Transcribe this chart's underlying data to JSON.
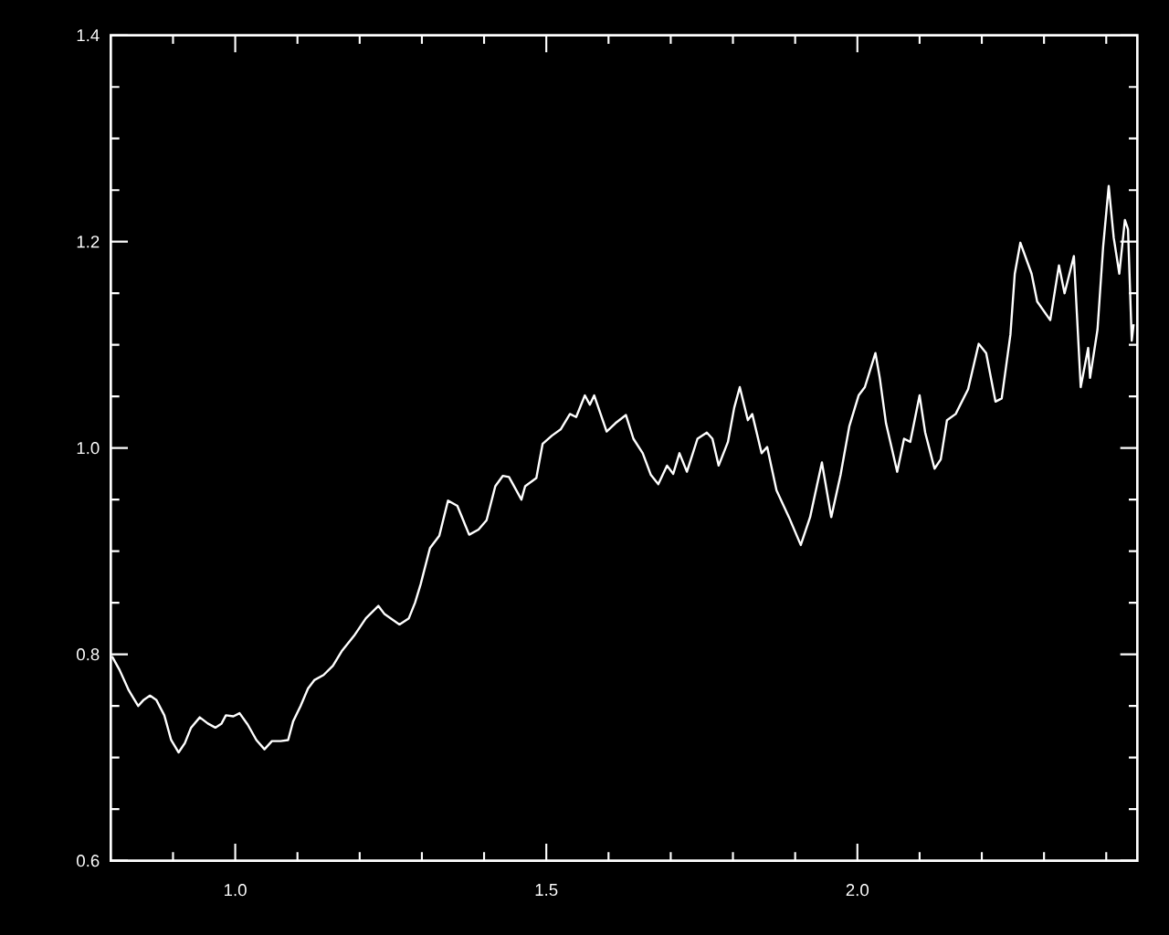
{
  "chart_data": {
    "type": "line",
    "x": [
      0.802,
      0.814,
      0.829,
      0.844,
      0.853,
      0.863,
      0.873,
      0.886,
      0.897,
      0.909,
      0.919,
      0.929,
      0.943,
      0.956,
      0.968,
      0.978,
      0.985,
      0.997,
      1.007,
      1.02,
      1.034,
      1.047,
      1.059,
      1.073,
      1.085,
      1.093,
      1.105,
      1.117,
      1.127,
      1.142,
      1.157,
      1.171,
      1.191,
      1.21,
      1.23,
      1.24,
      1.264,
      1.279,
      1.289,
      1.298,
      1.313,
      1.328,
      1.342,
      1.357,
      1.376,
      1.391,
      1.404,
      1.418,
      1.43,
      1.44,
      1.46,
      1.466,
      1.484,
      1.494,
      1.509,
      1.523,
      1.538,
      1.548,
      1.562,
      1.57,
      1.577,
      1.597,
      1.611,
      1.628,
      1.64,
      1.655,
      1.668,
      1.68,
      1.694,
      1.704,
      1.714,
      1.726,
      1.743,
      1.758,
      1.767,
      1.777,
      1.792,
      1.802,
      1.811,
      1.824,
      1.831,
      1.846,
      1.855,
      1.87,
      1.89,
      1.909,
      1.924,
      1.943,
      1.958,
      1.973,
      1.987,
      2.002,
      2.012,
      2.029,
      2.036,
      2.046,
      2.056,
      2.064,
      2.075,
      2.085,
      2.1,
      2.109,
      2.124,
      2.134,
      2.144,
      2.158,
      2.178,
      2.195,
      2.207,
      2.222,
      2.232,
      2.246,
      2.253,
      2.262,
      2.28,
      2.289,
      2.31,
      2.324,
      2.333,
      2.348,
      2.359,
      2.371,
      2.374,
      2.386,
      2.395,
      2.404,
      2.412,
      2.421,
      2.43,
      2.435,
      2.441,
      2.444
    ],
    "values": [
      0.798,
      0.785,
      0.765,
      0.75,
      0.756,
      0.76,
      0.756,
      0.741,
      0.717,
      0.705,
      0.714,
      0.729,
      0.739,
      0.733,
      0.729,
      0.733,
      0.741,
      0.74,
      0.743,
      0.732,
      0.717,
      0.708,
      0.716,
      0.716,
      0.717,
      0.735,
      0.75,
      0.767,
      0.775,
      0.78,
      0.789,
      0.803,
      0.818,
      0.835,
      0.847,
      0.839,
      0.829,
      0.835,
      0.85,
      0.868,
      0.903,
      0.915,
      0.949,
      0.944,
      0.916,
      0.921,
      0.93,
      0.963,
      0.973,
      0.972,
      0.95,
      0.963,
      0.971,
      1.004,
      1.012,
      1.018,
      1.033,
      1.03,
      1.051,
      1.042,
      1.051,
      1.016,
      1.024,
      1.032,
      1.009,
      0.995,
      0.974,
      0.965,
      0.983,
      0.975,
      0.995,
      0.977,
      1.009,
      1.015,
      1.009,
      0.983,
      1.006,
      1.039,
      1.059,
      1.027,
      1.033,
      0.995,
      1.001,
      0.959,
      0.933,
      0.906,
      0.933,
      0.986,
      0.933,
      0.974,
      1.021,
      1.051,
      1.059,
      1.092,
      1.068,
      1.024,
      0.998,
      0.977,
      1.009,
      1.006,
      1.051,
      1.015,
      0.98,
      0.989,
      1.027,
      1.033,
      1.057,
      1.101,
      1.092,
      1.045,
      1.048,
      1.11,
      1.169,
      1.199,
      1.169,
      1.142,
      1.124,
      1.177,
      1.15,
      1.186,
      1.059,
      1.097,
      1.068,
      1.115,
      1.195,
      1.254,
      1.204,
      1.169,
      1.221,
      1.212,
      1.104,
      1.12
    ],
    "color": "#ffffff",
    "xlim": [
      0.8,
      2.45
    ],
    "ylim": [
      0.6,
      1.4
    ],
    "xticks": [
      {
        "value": 0.9,
        "label": null
      },
      {
        "value": 1.0,
        "label": "1.0"
      },
      {
        "value": 1.1,
        "label": null
      },
      {
        "value": 1.2,
        "label": null
      },
      {
        "value": 1.3,
        "label": null
      },
      {
        "value": 1.4,
        "label": null
      },
      {
        "value": 1.5,
        "label": "1.5"
      },
      {
        "value": 1.6,
        "label": null
      },
      {
        "value": 1.7,
        "label": null
      },
      {
        "value": 1.8,
        "label": null
      },
      {
        "value": 1.9,
        "label": null
      },
      {
        "value": 2.0,
        "label": "2.0"
      },
      {
        "value": 2.1,
        "label": null
      },
      {
        "value": 2.2,
        "label": null
      },
      {
        "value": 2.3,
        "label": null
      },
      {
        "value": 2.4,
        "label": null
      }
    ],
    "yticks": [
      {
        "value": 0.6,
        "label": "0.6"
      },
      {
        "value": 0.65,
        "label": null
      },
      {
        "value": 0.7,
        "label": null
      },
      {
        "value": 0.75,
        "label": null
      },
      {
        "value": 0.8,
        "label": "0.8"
      },
      {
        "value": 0.85,
        "label": null
      },
      {
        "value": 0.9,
        "label": null
      },
      {
        "value": 0.95,
        "label": null
      },
      {
        "value": 1.0,
        "label": "1.0"
      },
      {
        "value": 1.05,
        "label": null
      },
      {
        "value": 1.1,
        "label": null
      },
      {
        "value": 1.15,
        "label": null
      },
      {
        "value": 1.2,
        "label": "1.2"
      },
      {
        "value": 1.25,
        "label": null
      },
      {
        "value": 1.3,
        "label": null
      },
      {
        "value": 1.35,
        "label": null
      },
      {
        "value": 1.4,
        "label": "1.4"
      }
    ]
  }
}
